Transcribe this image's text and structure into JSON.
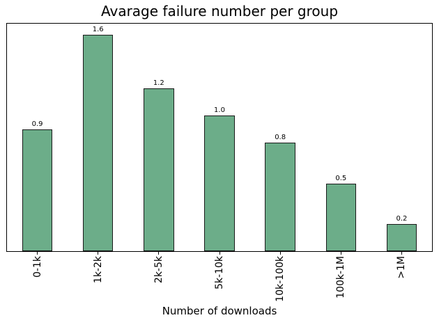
{
  "chart_data": {
    "type": "bar",
    "title": "Avarage failure number per group",
    "xlabel": "Number of downloads",
    "ylabel": "",
    "categories": [
      "0-1k",
      "1k-2k",
      "2k-5k",
      "5k-10k",
      "10k-100k",
      "100k-1M",
      ">1M"
    ],
    "values": [
      0.9,
      1.6,
      1.2,
      1.0,
      0.8,
      0.5,
      0.2
    ],
    "bar_labels": [
      "0.9",
      "1.6",
      "1.2",
      "1.0",
      "0.8",
      "0.5",
      "0.2"
    ],
    "ylim": [
      0,
      1.68
    ],
    "grid": false,
    "legend": "none",
    "tick_rotation_deg": 90,
    "colors": {
      "bar_fill": "#6cad89",
      "bar_edge": "#1a1a1a",
      "spine": "#000000",
      "text": "#000000",
      "background": "#ffffff"
    }
  }
}
